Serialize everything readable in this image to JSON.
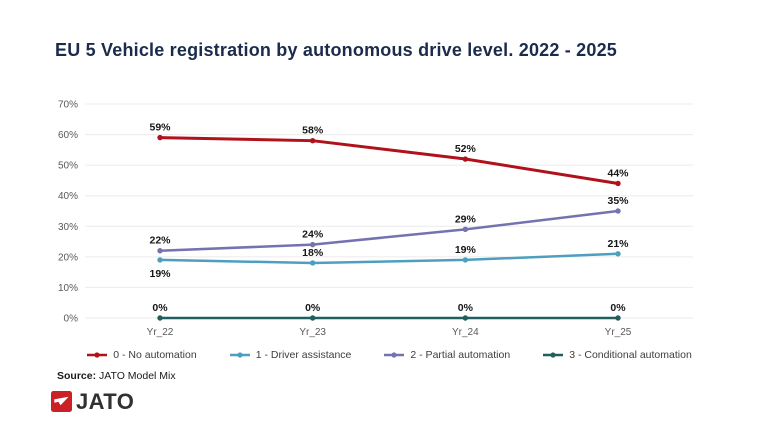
{
  "title": "EU 5 Vehicle registration by autonomous drive level. 2022 - 2025",
  "source": {
    "label": "Source:",
    "text": " JATO Model Mix"
  },
  "logo": {
    "text": "JATO",
    "icon": "jato-dart-icon",
    "brand_red": "#cb2026",
    "text_color": "#313131"
  },
  "colors": {
    "title": "#1b2b4c",
    "gridline": "#ebebeb",
    "axis_labels": "#595959",
    "data_labels": "#161616"
  },
  "chart_data": {
    "type": "line",
    "title": "EU 5 Vehicle registration by autonomous drive level. 2022 - 2025",
    "categories": [
      "Yr_22",
      "Yr_23",
      "Yr_24",
      "Yr_25"
    ],
    "series": [
      {
        "name": "0 - No automation",
        "color": "#b0111b",
        "values": [
          59,
          58,
          52,
          44
        ]
      },
      {
        "name": "1 - Driver assistance",
        "color": "#4e9fbf",
        "values": [
          19,
          18,
          19,
          21
        ]
      },
      {
        "name": "2 - Partial automation",
        "color": "#7572b0",
        "values": [
          22,
          24,
          29,
          35
        ]
      },
      {
        "name": "3 - Conditional automation",
        "color": "#215f5e",
        "values": [
          0,
          0,
          0,
          0
        ]
      }
    ],
    "yticks": [
      "0%",
      "10%",
      "20%",
      "30%",
      "40%",
      "50%",
      "60%",
      "70%"
    ],
    "ylim": [
      0,
      70
    ],
    "xlabel": "",
    "ylabel": "",
    "grid": true,
    "data_labels": true,
    "legend_position": "bottom"
  }
}
